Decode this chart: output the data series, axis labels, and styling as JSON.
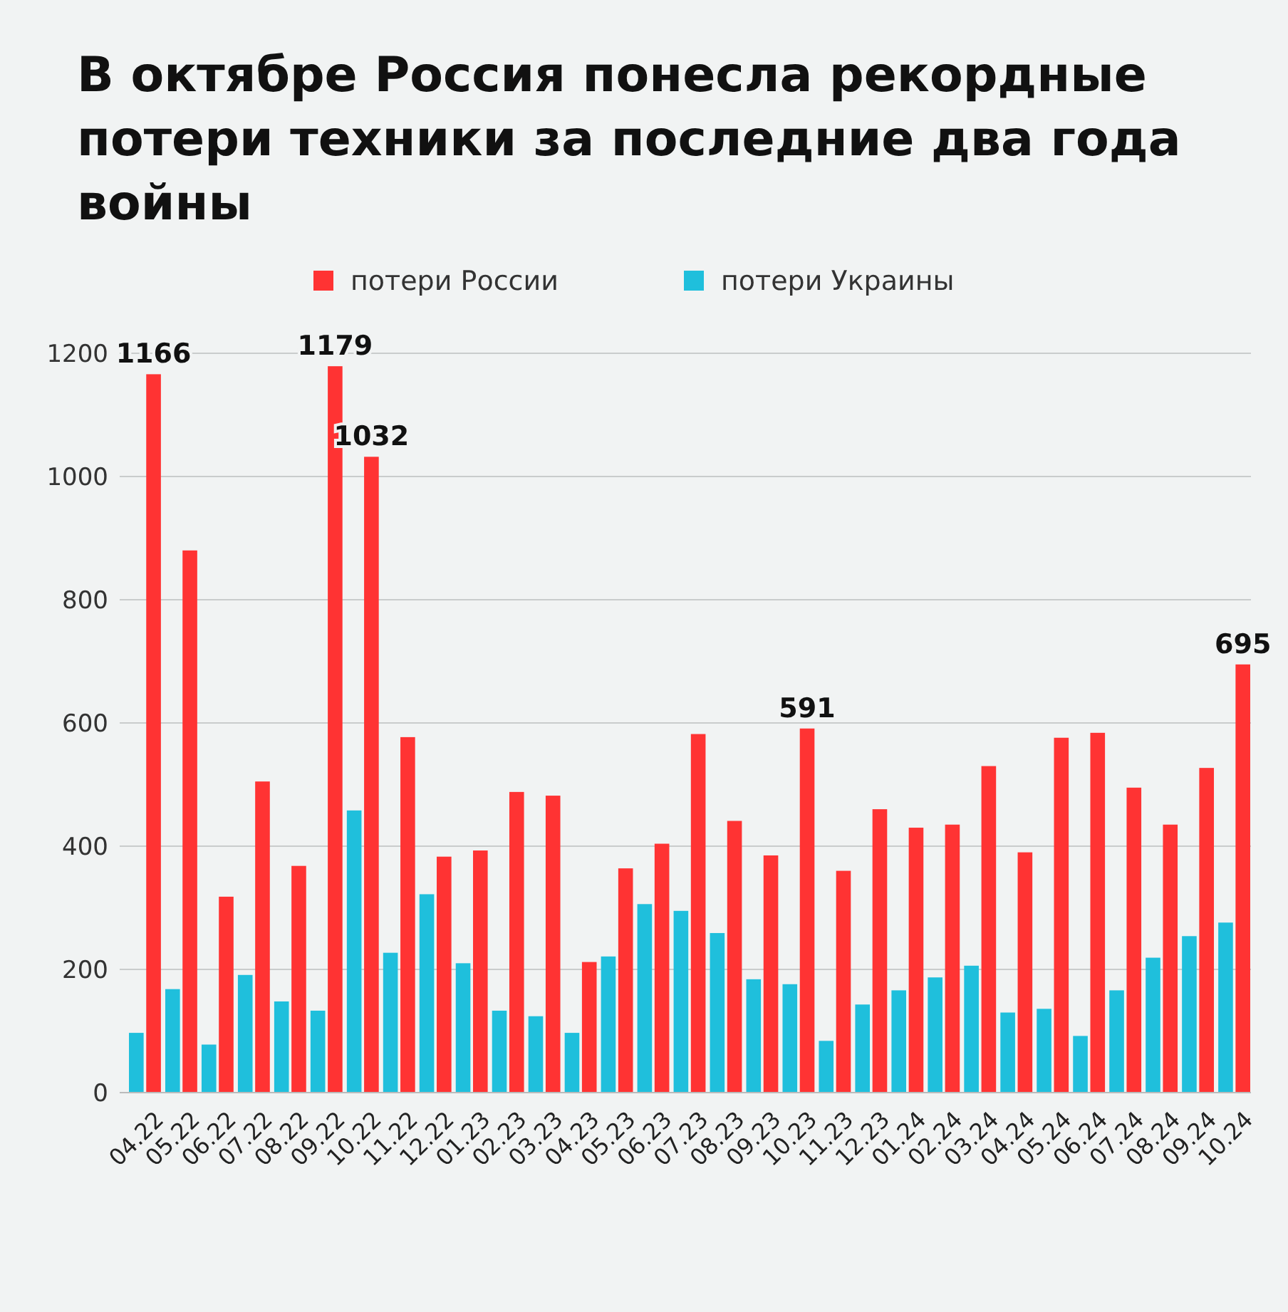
{
  "chart_data": {
    "type": "bar",
    "title": "В октябре Россия понесла рекордные потери техники за последние два года войны",
    "categories": [
      "04.22",
      "05.22",
      "06.22",
      "07.22",
      "08.22",
      "09.22",
      "10.22",
      "11.22",
      "12.22",
      "01.23",
      "02.23",
      "03.23",
      "04.23",
      "05.23",
      "06.23",
      "07.23",
      "08.23",
      "09.23",
      "10.23",
      "11.23",
      "12.23",
      "01.24",
      "02.24",
      "03.24",
      "04.24",
      "05.24",
      "06.24",
      "07.24",
      "08.24",
      "09.24",
      "10.24"
    ],
    "series": [
      {
        "name": "потери Украины",
        "color": "#1fbfdc",
        "values": [
          97,
          168,
          78,
          191,
          148,
          133,
          458,
          227,
          322,
          210,
          133,
          124,
          97,
          221,
          306,
          295,
          259,
          184,
          176,
          84,
          143,
          166,
          187,
          206,
          130,
          136,
          92,
          166,
          219,
          254,
          276
        ]
      },
      {
        "name": "потери России",
        "color": "#ff3333",
        "values": [
          1166,
          880,
          318,
          505,
          368,
          1179,
          1032,
          577,
          383,
          393,
          488,
          482,
          212,
          364,
          404,
          582,
          441,
          385,
          591,
          360,
          460,
          430,
          435,
          530,
          390,
          576,
          584,
          495,
          435,
          527,
          695
        ],
        "value_labels": [
          "1166",
          null,
          null,
          null,
          null,
          "1179",
          "1032",
          null,
          null,
          null,
          null,
          null,
          null,
          null,
          null,
          null,
          null,
          null,
          "591",
          null,
          null,
          null,
          null,
          null,
          null,
          null,
          null,
          null,
          null,
          null,
          "695"
        ]
      }
    ],
    "ylim": [
      0,
      1200
    ],
    "yticks": [
      0,
      200,
      400,
      600,
      800,
      1000,
      1200
    ],
    "grid": "y",
    "legend": "top"
  }
}
